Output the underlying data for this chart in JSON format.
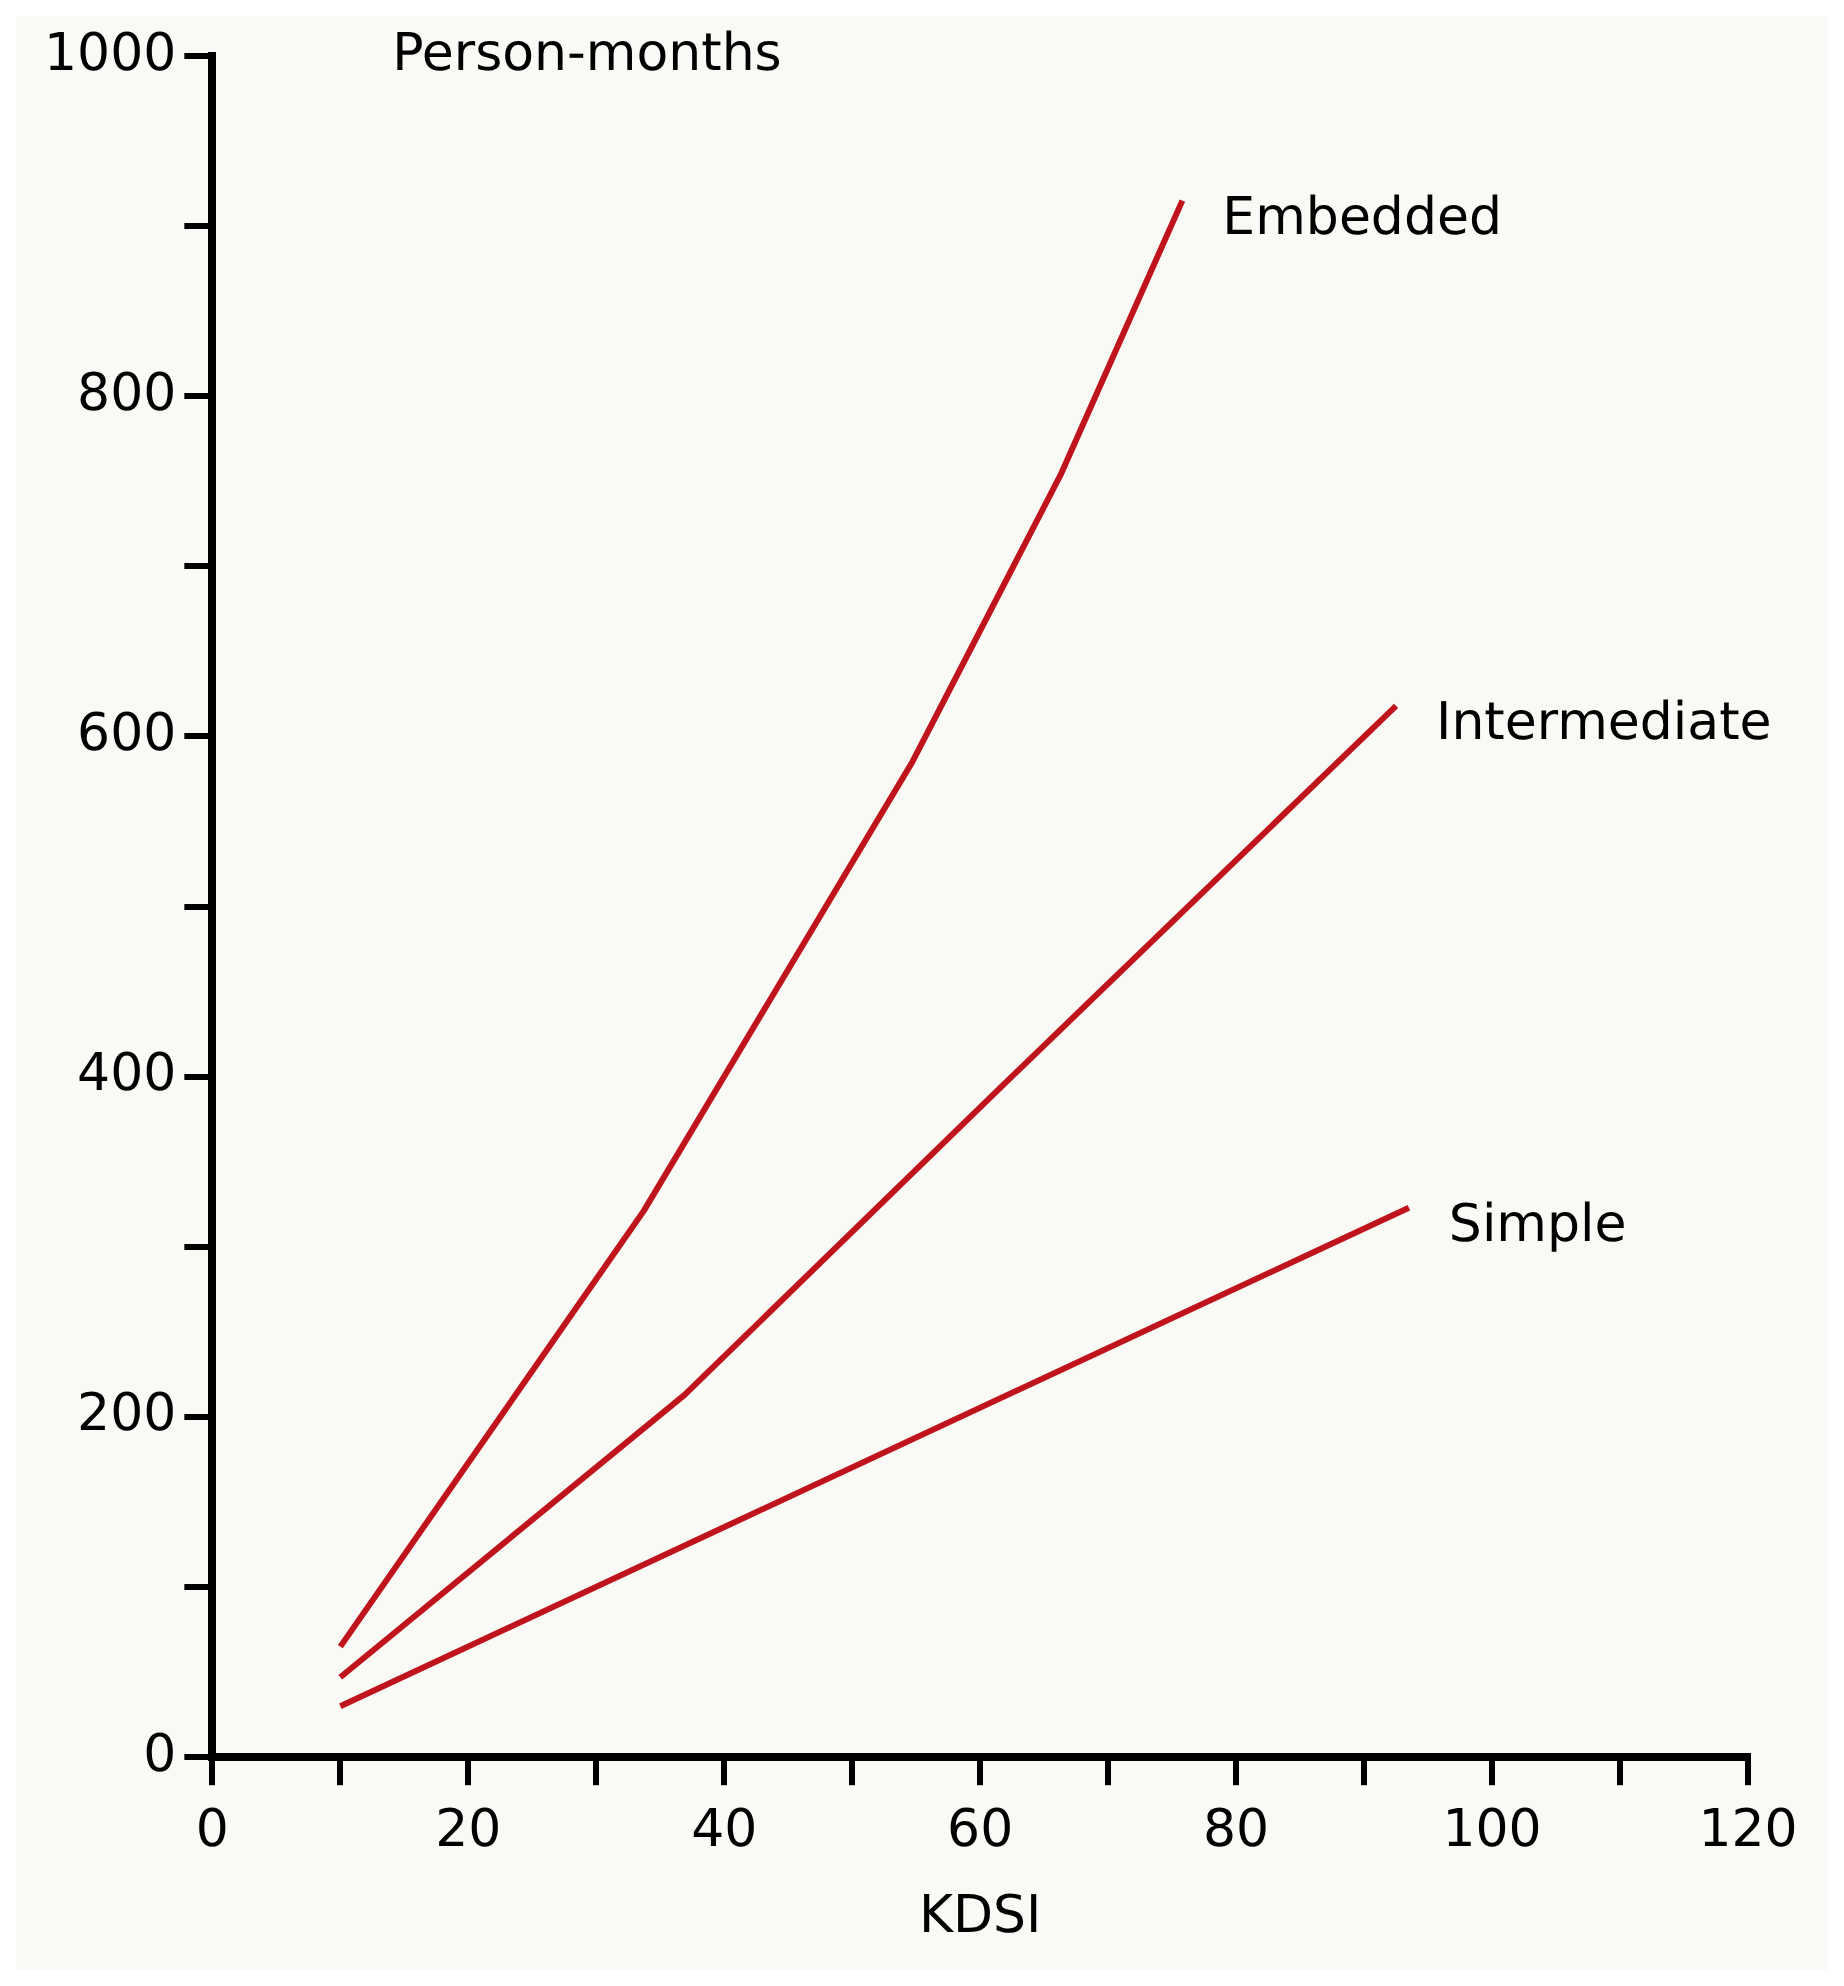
{
  "chart_data": {
    "type": "line",
    "ylabel": "Person-months",
    "xlabel": "KDSI",
    "xlim": [
      0,
      120
    ],
    "xticks": [
      {
        "value": 0,
        "label": "0"
      },
      {
        "value": 10,
        "label": null
      },
      20,
      {
        "value": 30,
        "label": null
      },
      40,
      {
        "value": 50,
        "label": null
      },
      60,
      {
        "value": 70,
        "label": null
      },
      80,
      {
        "value": 90,
        "label": null
      },
      100,
      {
        "value": 110,
        "label": null
      },
      120
    ],
    "ylim": [
      0,
      1000
    ],
    "yticks": [
      0,
      {
        "value": 100,
        "label": null
      },
      200,
      {
        "value": 300,
        "label": null
      },
      400,
      {
        "value": 500,
        "label": null
      },
      600,
      {
        "value": 700,
        "label": null
      },
      800,
      {
        "value": 900,
        "label": null
      },
      1000
    ],
    "grid": false,
    "legend": false,
    "marker": "none",
    "series": [
      {
        "name": "Embedded",
        "color": "#c0141c",
        "x": [
          10,
          33.7,
          54.7,
          66.3,
          75.8
        ],
        "values": [
          65,
          321,
          585,
          754,
          915
        ]
      },
      {
        "name": "Intermediate",
        "color": "#c0141c",
        "x": [
          10,
          36.9,
          61.5,
          92.5
        ],
        "values": [
          47,
          213,
          393,
          618
        ]
      },
      {
        "name": "Simple",
        "color": "#c0141c",
        "x": [
          10,
          93.5
        ],
        "values": [
          30,
          323
        ]
      }
    ]
  }
}
